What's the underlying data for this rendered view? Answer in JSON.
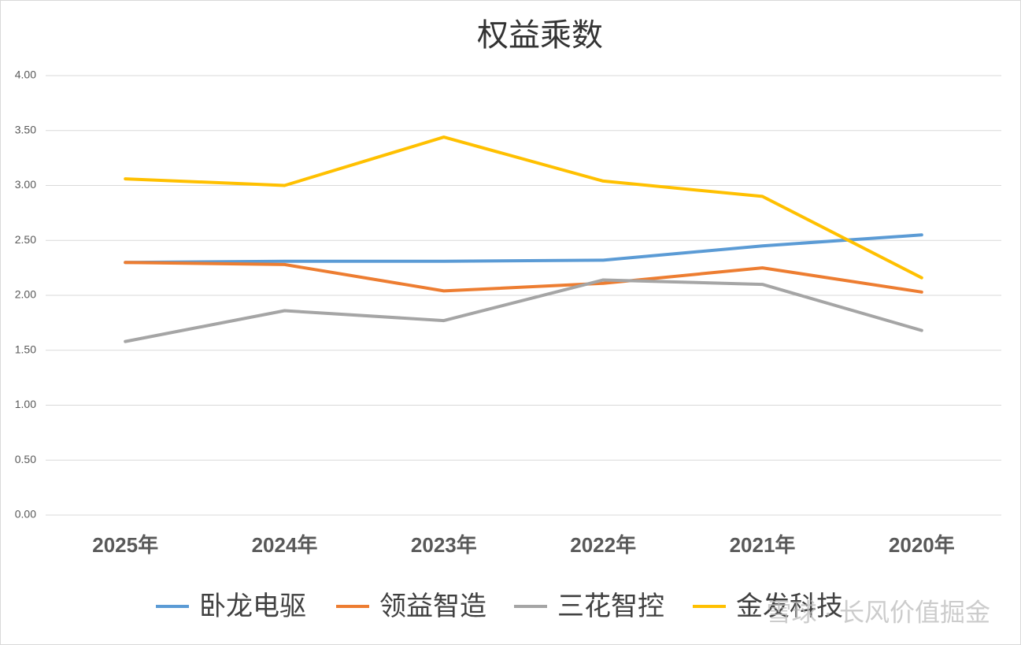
{
  "chart_data": {
    "type": "line",
    "title": "权益乘数",
    "categories": [
      "2025年",
      "2024年",
      "2023年",
      "2022年",
      "2021年",
      "2020年"
    ],
    "series": [
      {
        "name": "卧龙电驱",
        "color": "#5b9bd5",
        "values": [
          2.3,
          2.31,
          2.31,
          2.32,
          2.45,
          2.55
        ]
      },
      {
        "name": "领益智造",
        "color": "#ed7d31",
        "values": [
          2.3,
          2.28,
          2.04,
          2.11,
          2.25,
          2.03
        ]
      },
      {
        "name": "三花智控",
        "color": "#a5a5a5",
        "values": [
          1.58,
          1.86,
          1.77,
          2.14,
          2.1,
          1.68
        ]
      },
      {
        "name": "金发科技",
        "color": "#ffc000",
        "values": [
          3.06,
          3.0,
          3.44,
          3.04,
          2.9,
          2.16
        ]
      }
    ],
    "ylim": [
      0,
      4
    ],
    "yticks": [
      {
        "value": 0,
        "label": "0.00"
      },
      {
        "value": 0.5,
        "label": "0.50"
      },
      {
        "value": 1,
        "label": "1.00"
      },
      {
        "value": 1.5,
        "label": "1.50"
      },
      {
        "value": 2,
        "label": "2.00"
      },
      {
        "value": 2.5,
        "label": "2.50"
      },
      {
        "value": 3,
        "label": "3.00"
      },
      {
        "value": 3.5,
        "label": "3.50"
      },
      {
        "value": 4,
        "label": "4.00"
      }
    ],
    "grid": true,
    "legend": "bottom",
    "watermark": "雪球 · 长风价值掘金"
  }
}
